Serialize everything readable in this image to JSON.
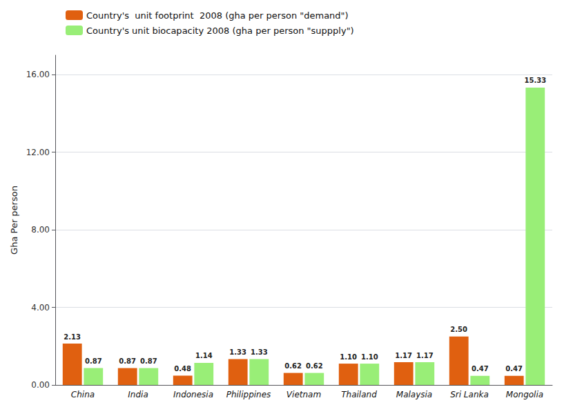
{
  "chart_data": {
    "type": "bar",
    "categories": [
      "China",
      "India",
      "Indonesia",
      "Philippines",
      "Vietnam",
      "Thailand",
      "Malaysia",
      "Sri Lanka",
      "Mongolia"
    ],
    "series": [
      {
        "name": "Country's  unit footprint  2008 (gha per person \"demand\")",
        "color": "#e06010",
        "values": [
          2.13,
          0.87,
          0.48,
          1.33,
          0.62,
          1.1,
          1.17,
          2.5,
          0.47
        ],
        "value_labels": [
          "2.13",
          "0.87",
          "0.48",
          "1.33",
          "0.62",
          "1.10",
          "1.17",
          "2.50",
          "0.47"
        ]
      },
      {
        "name": "Country's unit biocapacity 2008 (gha per person \"suppply\")",
        "color": "#99ee77",
        "values": [
          0.87,
          0.87,
          1.14,
          1.33,
          0.62,
          1.1,
          1.17,
          0.47,
          15.33
        ],
        "value_labels": [
          "0.87",
          "0.87",
          "1.14",
          "1.33",
          "0.62",
          "1.10",
          "1.17",
          "0.47",
          "15.33"
        ]
      }
    ],
    "ylabel": "Gha Per person",
    "ylim": [
      0,
      17
    ],
    "yticks": [
      {
        "value": 0,
        "label": "0.00"
      },
      {
        "value": 4,
        "label": "4.00"
      },
      {
        "value": 8,
        "label": "8.00"
      },
      {
        "value": 12,
        "label": "12.00"
      },
      {
        "value": 16,
        "label": "16.00"
      }
    ],
    "grid": true,
    "legend": "top",
    "data_labels": true
  }
}
